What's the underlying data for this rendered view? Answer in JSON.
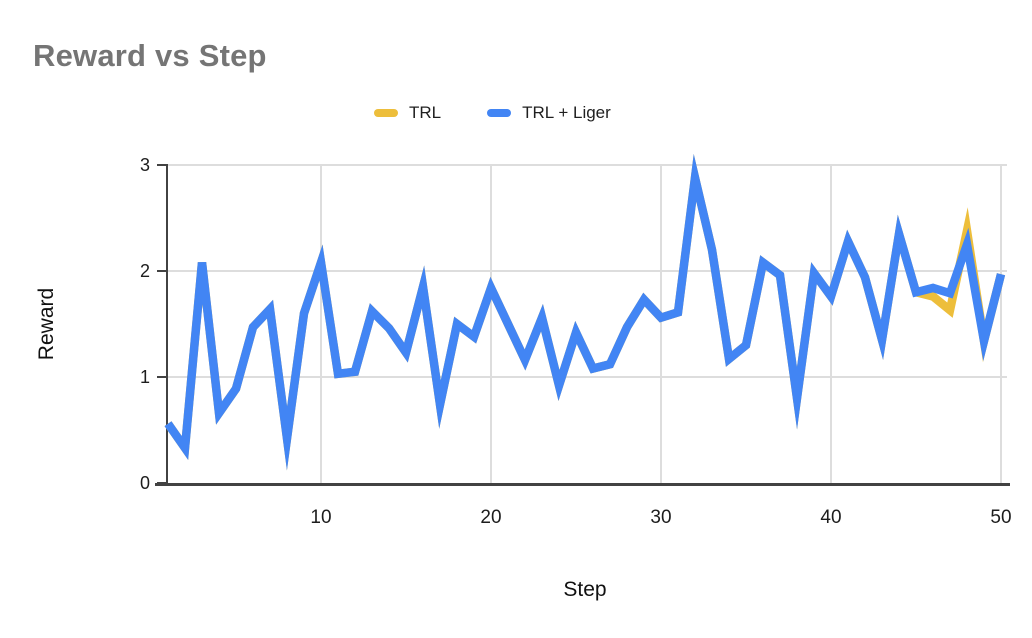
{
  "chart": {
    "title": "Reward vs Step",
    "x_axis_label": "Step",
    "y_axis_label": "Reward"
  },
  "colors": {
    "title": "#757575",
    "grid": "#dddddd",
    "axis": "#424242",
    "tick_label": "#1d1d1d",
    "trl_yellow": "#EDBE3B",
    "trl_liger_blue": "#4285F4"
  },
  "chart_data": {
    "type": "line",
    "title": "Reward vs Step",
    "xlabel": "Step",
    "ylabel": "Reward",
    "xlim": [
      1,
      50
    ],
    "ylim": [
      0,
      3
    ],
    "x_ticks": [
      10,
      20,
      30,
      40,
      50
    ],
    "y_ticks": [
      0,
      1,
      2,
      3
    ],
    "grid": true,
    "legend_position": "top",
    "x": [
      1,
      2,
      3,
      4,
      5,
      6,
      7,
      8,
      9,
      10,
      11,
      12,
      13,
      14,
      15,
      16,
      17,
      18,
      19,
      20,
      21,
      22,
      23,
      24,
      25,
      26,
      27,
      28,
      29,
      30,
      31,
      32,
      33,
      34,
      35,
      36,
      37,
      38,
      39,
      40,
      41,
      42,
      43,
      44,
      45,
      46,
      47,
      48,
      49,
      50
    ],
    "series": [
      {
        "name": "TRL",
        "color": "#EDBE3B",
        "values": [
          0.56,
          0.33,
          2.08,
          0.66,
          0.89,
          1.47,
          1.64,
          0.42,
          1.6,
          2.08,
          1.03,
          1.05,
          1.62,
          1.46,
          1.23,
          1.85,
          0.74,
          1.5,
          1.38,
          1.84,
          1.5,
          1.16,
          1.56,
          0.92,
          1.42,
          1.08,
          1.12,
          1.47,
          1.73,
          1.56,
          1.61,
          2.88,
          2.2,
          1.17,
          1.3,
          2.08,
          1.96,
          0.8,
          1.98,
          1.76,
          2.28,
          1.94,
          1.35,
          2.35,
          1.8,
          1.76,
          1.63,
          2.38,
          1.34,
          1.97
        ]
      },
      {
        "name": "TRL + Liger",
        "color": "#4285F4",
        "values": [
          0.56,
          0.33,
          2.08,
          0.66,
          0.89,
          1.47,
          1.64,
          0.42,
          1.6,
          2.08,
          1.03,
          1.05,
          1.62,
          1.46,
          1.23,
          1.85,
          0.74,
          1.5,
          1.38,
          1.84,
          1.5,
          1.16,
          1.56,
          0.92,
          1.42,
          1.08,
          1.12,
          1.47,
          1.73,
          1.56,
          1.61,
          2.88,
          2.2,
          1.17,
          1.3,
          2.08,
          1.96,
          0.8,
          1.98,
          1.76,
          2.28,
          1.94,
          1.35,
          2.35,
          1.8,
          1.84,
          1.79,
          2.25,
          1.34,
          1.97
        ]
      }
    ]
  }
}
